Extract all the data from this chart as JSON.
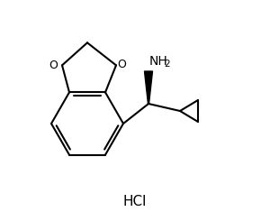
{
  "background_color": "#ffffff",
  "line_color": "#000000",
  "line_width": 1.5,
  "hcl_label": "HCl",
  "nh2_label": "NH",
  "o_label": "O"
}
